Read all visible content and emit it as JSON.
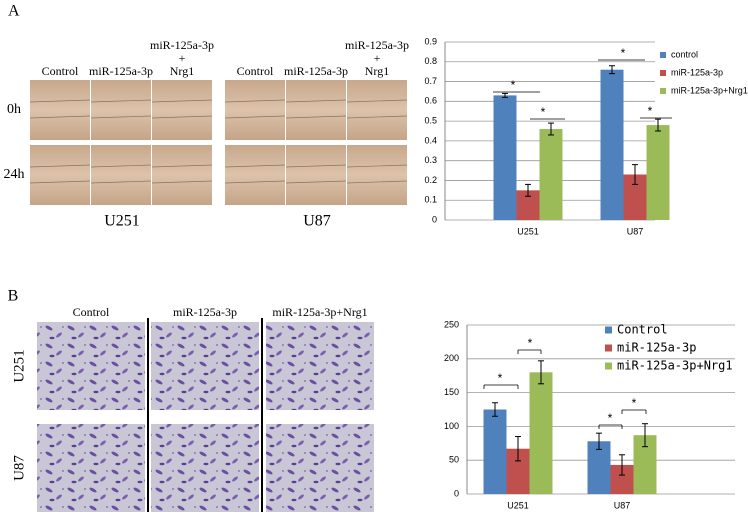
{
  "figure": {
    "panel_a": {
      "label": "A",
      "columns": [
        "Control",
        "miR-125a-3p",
        [
          "miR-125a-3p",
          "+",
          "Nrg1"
        ]
      ],
      "rows": [
        "0h",
        "24h"
      ],
      "groups": [
        "U251",
        "U87"
      ]
    },
    "panel_b": {
      "label": "B",
      "columns": [
        "Control",
        "miR-125a-3p",
        "miR-125a-3p+Nrg1"
      ],
      "rows": [
        "U251",
        "U87"
      ]
    }
  },
  "chart_data": [
    {
      "type": "bar",
      "categories": [
        "U251",
        "U87"
      ],
      "series": [
        {
          "name": "control",
          "color": "#4f81bd",
          "values": [
            0.63,
            0.76
          ],
          "errors": [
            0.01,
            0.02
          ]
        },
        {
          "name": "miR-125a-3p",
          "color": "#c0504d",
          "values": [
            0.15,
            0.23
          ],
          "errors": [
            0.03,
            0.05
          ]
        },
        {
          "name": "miR-125a-3p+Nrg1",
          "color": "#9bbb59",
          "values": [
            0.46,
            0.48
          ],
          "errors": [
            0.03,
            0.03
          ]
        }
      ],
      "ylim": [
        0,
        0.9
      ],
      "yticks": [
        0,
        0.1,
        0.2,
        0.3,
        0.4,
        0.5,
        0.6,
        0.7,
        0.8,
        0.9
      ],
      "grid": true,
      "legend": "right",
      "annotations": [
        "*",
        "*",
        "*",
        "*"
      ]
    },
    {
      "type": "bar",
      "categories": [
        "U251",
        "U87"
      ],
      "series": [
        {
          "name": "Control",
          "color": "#4f81bd",
          "values": [
            125,
            78
          ],
          "errors": [
            10,
            12
          ]
        },
        {
          "name": "miR-125a-3p",
          "color": "#c0504d",
          "values": [
            67,
            43
          ],
          "errors": [
            18,
            15
          ]
        },
        {
          "name": "miR-125a-3p+Nrg1",
          "color": "#9bbb59",
          "values": [
            180,
            87
          ],
          "errors": [
            17,
            17
          ]
        }
      ],
      "ylim": [
        0,
        250
      ],
      "yticks": [
        0,
        50,
        100,
        150,
        200,
        250
      ],
      "grid": true,
      "legend": "top-right",
      "annotations": [
        "*",
        "*",
        "*",
        "*"
      ]
    }
  ]
}
